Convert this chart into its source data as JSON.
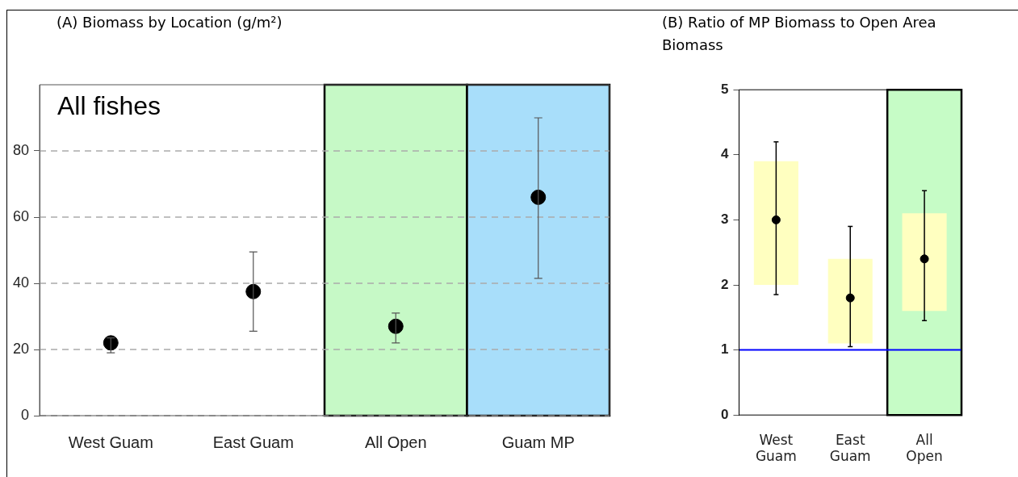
{
  "chart_data": [
    {
      "type": "scatter",
      "title": "(A)   Biomass by Location (g/m²)",
      "categories": [
        "West Guam",
        "East Guam",
        "All Open",
        "Guam MP"
      ],
      "values": [
        22,
        37.5,
        27,
        66
      ],
      "errors": [
        [
          19,
          23.5
        ],
        [
          25.5,
          49.5
        ],
        [
          22,
          31
        ],
        [
          41.5,
          90
        ]
      ],
      "color": "#000000",
      "marker": "circle",
      "ylim": [
        0,
        100
      ],
      "yticks": [
        0,
        20,
        40,
        60,
        80
      ],
      "grid": "y",
      "legend": false,
      "bands": [
        {
          "axis": "x",
          "from": "All Open",
          "to": "All Open",
          "color": "#c6f9c6"
        },
        {
          "axis": "x",
          "from": "Guam MP",
          "to": "Guam MP",
          "color": "#a8defa"
        }
      ],
      "annotations": [
        "All fishes"
      ]
    },
    {
      "type": "bar",
      "title": "(B) Ratio of MP Biomass to Open Area Biomass",
      "categories": [
        "West Guam",
        "East Guam",
        "All Open"
      ],
      "series": [
        {
          "color": "#ffffc0",
          "values": [
            1.9,
            1.3,
            1.5
          ],
          "base": [
            2.0,
            1.1,
            1.6
          ]
        },
        {
          "type": "scatter",
          "color": "#000000",
          "x": [
            "West Guam",
            "East Guam",
            "All Open"
          ],
          "values": [
            3.0,
            1.8,
            2.4
          ],
          "errors": [
            [
              1.85,
              4.2
            ],
            [
              1.05,
              2.9
            ],
            [
              1.45,
              3.45
            ]
          ]
        }
      ],
      "marker": "circle",
      "ylim": [
        0,
        5
      ],
      "yticks": [
        0,
        1,
        2,
        3,
        4,
        5
      ],
      "legend": false,
      "ref_lines": [
        {
          "axis": "y",
          "value": 1,
          "color": "#0000ff"
        }
      ],
      "bands": [
        {
          "axis": "x",
          "from": "All Open",
          "to": "All Open",
          "color": "#c6fcc6"
        }
      ]
    }
  ]
}
